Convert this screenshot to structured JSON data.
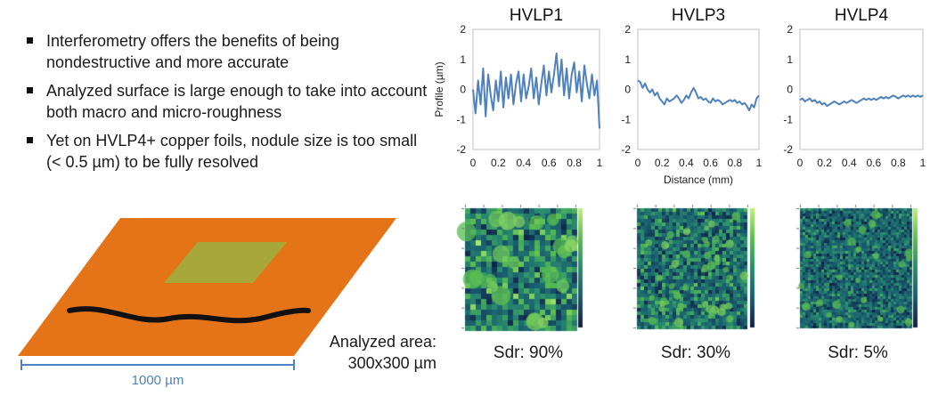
{
  "bullets": [
    "Interferometry offers the benefits of being nondestructive and more accurate",
    "Analyzed surface is large enough to take into account both macro and micro-roughness",
    "Yet on HVLP4+ copper foils, nodule size is too small (< 0.5 µm) to be fully resolved"
  ],
  "illustration": {
    "scale_label": "1000 µm",
    "analyzed_area_line1": "Analyzed area:",
    "analyzed_area_line2": "300x300 µm",
    "colors": {
      "foil": "#e57317",
      "area": "#a8a83a",
      "profile": "#111111",
      "scale": "#4f81bd"
    }
  },
  "chart_data": [
    {
      "type": "line",
      "title": "HVLP1",
      "ylabel": "Profile (µm)",
      "xlabel": "",
      "xlim": [
        0,
        1
      ],
      "ylim": [
        -2,
        2
      ],
      "xticks": [
        "0",
        "0.2",
        "0.4",
        "0.6",
        "0.8",
        "1"
      ],
      "yticks": [
        "2",
        "1",
        "0",
        "-1",
        "-2"
      ],
      "color": "#4f81bd",
      "x": [
        0,
        0.02,
        0.04,
        0.06,
        0.08,
        0.1,
        0.12,
        0.14,
        0.16,
        0.18,
        0.2,
        0.22,
        0.24,
        0.26,
        0.28,
        0.3,
        0.32,
        0.34,
        0.36,
        0.38,
        0.4,
        0.42,
        0.44,
        0.46,
        0.48,
        0.5,
        0.52,
        0.54,
        0.56,
        0.58,
        0.6,
        0.62,
        0.64,
        0.66,
        0.68,
        0.7,
        0.72,
        0.74,
        0.76,
        0.78,
        0.8,
        0.82,
        0.84,
        0.86,
        0.88,
        0.9,
        0.92,
        0.94,
        0.96,
        0.98,
        1
      ],
      "y": [
        0,
        -0.8,
        0.3,
        -0.5,
        0.7,
        -0.9,
        0.5,
        -0.2,
        -0.7,
        0.3,
        -0.4,
        0.6,
        -0.6,
        0.4,
        -0.3,
        0.5,
        -0.5,
        0.2,
        0.6,
        -0.4,
        0.5,
        -0.3,
        0.1,
        0.7,
        -0.3,
        0.4,
        -0.5,
        0.2,
        0.8,
        -0.2,
        0.6,
        -0.1,
        0.5,
        1.2,
        0.1,
        1.0,
        -0.2,
        0.7,
        -0.3,
        0.5,
        0.9,
        -0.1,
        0.6,
        -0.4,
        0.8,
        0.2,
        -0.3,
        0.5,
        -0.2,
        0.3,
        -1.3
      ]
    },
    {
      "type": "line",
      "title": "HVLP3",
      "ylabel": "",
      "xlabel": "Distance (mm)",
      "xlim": [
        0,
        1
      ],
      "ylim": [
        -2,
        2
      ],
      "xticks": [
        "0",
        "0.2",
        "0.4",
        "0.6",
        "0.8",
        "1"
      ],
      "yticks": [
        "2",
        "1",
        "0",
        "-1",
        "-2"
      ],
      "color": "#4f81bd",
      "x": [
        0,
        0.02,
        0.04,
        0.06,
        0.08,
        0.1,
        0.12,
        0.14,
        0.16,
        0.18,
        0.2,
        0.22,
        0.24,
        0.26,
        0.28,
        0.3,
        0.32,
        0.34,
        0.36,
        0.38,
        0.4,
        0.42,
        0.44,
        0.46,
        0.48,
        0.5,
        0.52,
        0.54,
        0.56,
        0.58,
        0.6,
        0.62,
        0.64,
        0.66,
        0.68,
        0.7,
        0.72,
        0.74,
        0.76,
        0.78,
        0.8,
        0.82,
        0.84,
        0.86,
        0.88,
        0.9,
        0.92,
        0.94,
        0.96,
        0.98,
        1
      ],
      "y": [
        0.3,
        0.25,
        0.05,
        0.2,
        0.0,
        -0.1,
        0.0,
        -0.2,
        -0.1,
        -0.3,
        -0.4,
        -0.5,
        -0.3,
        -0.4,
        -0.35,
        -0.3,
        -0.2,
        -0.3,
        -0.45,
        -0.35,
        -0.2,
        -0.3,
        -0.1,
        0.05,
        -0.1,
        -0.3,
        -0.25,
        -0.35,
        -0.3,
        -0.4,
        -0.45,
        -0.3,
        -0.4,
        -0.35,
        -0.4,
        -0.5,
        -0.45,
        -0.4,
        -0.35,
        -0.4,
        -0.35,
        -0.45,
        -0.4,
        -0.5,
        -0.45,
        -0.55,
        -0.7,
        -0.5,
        -0.6,
        -0.3,
        -0.2
      ]
    },
    {
      "type": "line",
      "title": "HVLP4",
      "ylabel": "",
      "xlabel": "",
      "xlim": [
        0,
        1
      ],
      "ylim": [
        -2,
        2
      ],
      "xticks": [
        "0",
        "0.2",
        "0.4",
        "0.6",
        "0.8",
        "1"
      ],
      "yticks": [
        "2",
        "1",
        "0",
        "-1",
        "-2"
      ],
      "color": "#4f81bd",
      "x": [
        0,
        0.02,
        0.04,
        0.06,
        0.08,
        0.1,
        0.12,
        0.14,
        0.16,
        0.18,
        0.2,
        0.22,
        0.24,
        0.26,
        0.28,
        0.3,
        0.32,
        0.34,
        0.36,
        0.38,
        0.4,
        0.42,
        0.44,
        0.46,
        0.48,
        0.5,
        0.52,
        0.54,
        0.56,
        0.58,
        0.6,
        0.62,
        0.64,
        0.66,
        0.68,
        0.7,
        0.72,
        0.74,
        0.76,
        0.78,
        0.8,
        0.82,
        0.84,
        0.86,
        0.88,
        0.9,
        0.92,
        0.94,
        0.96,
        0.98,
        1
      ],
      "y": [
        -0.35,
        -0.3,
        -0.4,
        -0.35,
        -0.3,
        -0.4,
        -0.35,
        -0.45,
        -0.4,
        -0.5,
        -0.45,
        -0.55,
        -0.5,
        -0.45,
        -0.4,
        -0.45,
        -0.5,
        -0.45,
        -0.4,
        -0.45,
        -0.4,
        -0.35,
        -0.4,
        -0.45,
        -0.4,
        -0.35,
        -0.3,
        -0.35,
        -0.3,
        -0.35,
        -0.3,
        -0.35,
        -0.3,
        -0.25,
        -0.3,
        -0.25,
        -0.3,
        -0.25,
        -0.2,
        -0.25,
        -0.3,
        -0.25,
        -0.2,
        -0.25,
        -0.2,
        -0.25,
        -0.2,
        -0.25,
        -0.2,
        -0.25,
        -0.2
      ]
    }
  ],
  "surface_maps": [
    {
      "label": "Sdr: 90%",
      "seed": 11,
      "cell": 6,
      "brightness": 0.62
    },
    {
      "label": "Sdr: 30%",
      "seed": 23,
      "cell": 4,
      "brightness": 0.48
    },
    {
      "label": "Sdr: 5%",
      "seed": 37,
      "cell": 3,
      "brightness": 0.34
    }
  ]
}
